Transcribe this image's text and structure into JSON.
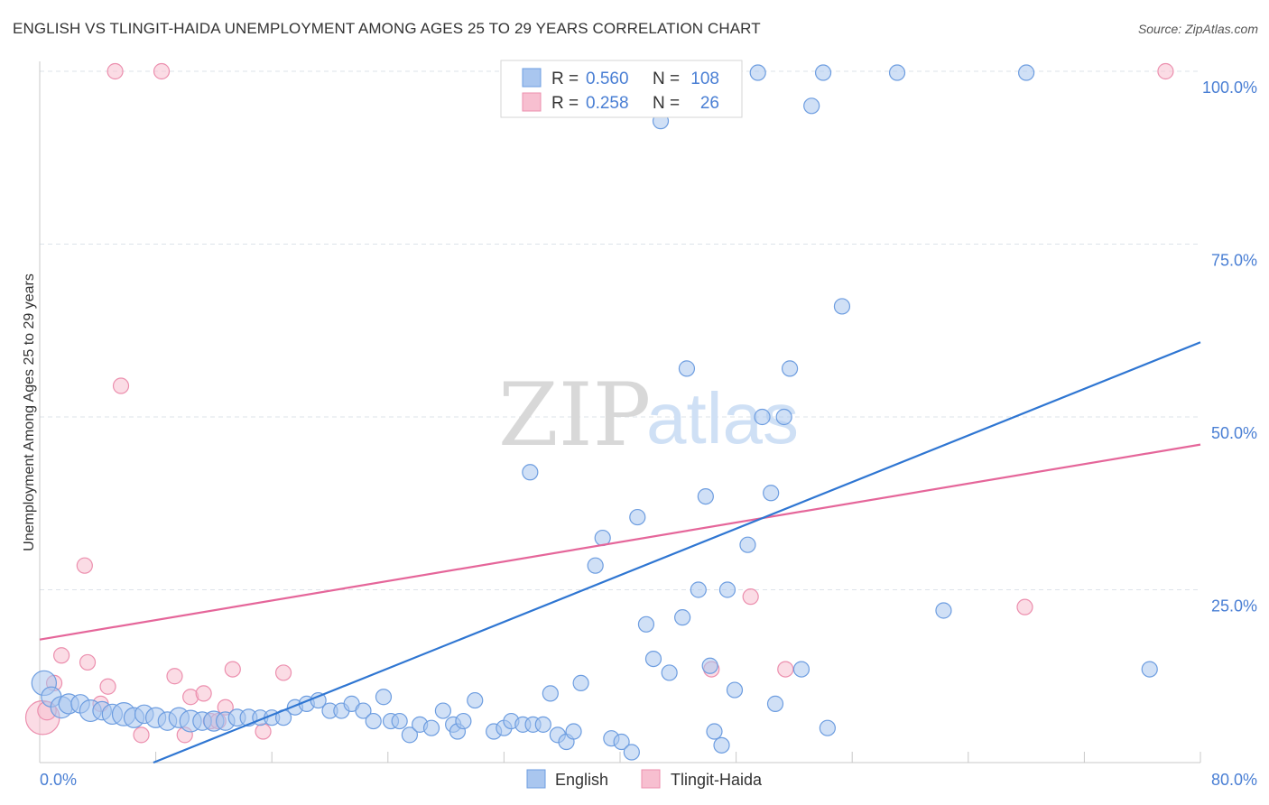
{
  "title": "ENGLISH VS TLINGIT-HAIDA UNEMPLOYMENT AMONG AGES 25 TO 29 YEARS CORRELATION CHART",
  "source": "Source: ZipAtlas.com",
  "watermark": {
    "zip": "ZIP",
    "atlas": "atlas"
  },
  "legend_box": {
    "rows": [
      {
        "r_label": "R =",
        "r_value": "0.560",
        "n_label": "N =",
        "n_value": "108"
      },
      {
        "r_label": "R =",
        "r_value": "0.258",
        "n_label": "N =",
        "n_value": "26"
      }
    ]
  },
  "bottom_legend": {
    "english": "English",
    "tlingit": "Tlingit-Haida"
  },
  "colors": {
    "english_fill": "#a9c6ef",
    "english_stroke": "#6d9de0",
    "english_line": "#2f76d2",
    "tlingit_fill": "#f7bfd0",
    "tlingit_stroke": "#ec8fae",
    "tlingit_line": "#e5669a",
    "tick_text": "#4a7fd4",
    "grid": "#dde3ea"
  },
  "chart_data": {
    "type": "scatter",
    "title": "ENGLISH VS TLINGIT-HAIDA UNEMPLOYMENT AMONG AGES 25 TO 29 YEARS CORRELATION CHART",
    "xlabel": "",
    "ylabel": "Unemployment Among Ages 25 to 29 years",
    "xlim": [
      0,
      80
    ],
    "ylim": [
      0,
      100
    ],
    "x_tick_labels": [
      "0.0%",
      "80.0%"
    ],
    "y_ticks": [
      25,
      50,
      75,
      100
    ],
    "y_tick_labels": [
      "25.0%",
      "50.0%",
      "75.0%",
      "100.0%"
    ],
    "grid": true,
    "legend_position": "bottom-center",
    "series": [
      {
        "name": "English",
        "R": 0.56,
        "N": 108,
        "trend": {
          "x": [
            0,
            80
          ],
          "y": [
            -6.6,
            60.8
          ]
        },
        "points": [
          [
            0.3,
            11.5,
            1.6
          ],
          [
            0.8,
            9.5,
            1.3
          ],
          [
            1.5,
            8.0,
            1.4
          ],
          [
            2.0,
            8.5,
            1.3
          ],
          [
            2.8,
            8.5,
            1.2
          ],
          [
            3.5,
            7.5,
            1.4
          ],
          [
            4.3,
            7.5,
            1.2
          ],
          [
            5.0,
            7.0,
            1.3
          ],
          [
            5.8,
            7.0,
            1.5
          ],
          [
            6.5,
            6.5,
            1.3
          ],
          [
            7.2,
            7.0,
            1.2
          ],
          [
            8.0,
            6.5,
            1.3
          ],
          [
            8.8,
            6.0,
            1.2
          ],
          [
            9.6,
            6.5,
            1.3
          ],
          [
            10.4,
            6.0,
            1.4
          ],
          [
            11.2,
            6.0,
            1.2
          ],
          [
            12.0,
            6.0,
            1.3
          ],
          [
            12.8,
            6.0,
            1.2
          ],
          [
            13.6,
            6.5,
            1.1
          ],
          [
            14.4,
            6.5,
            1.1
          ],
          [
            15.2,
            6.5,
            1.0
          ],
          [
            16.0,
            6.5,
            1.0
          ],
          [
            16.8,
            6.5,
            1.0
          ],
          [
            17.6,
            8.0,
            1.0
          ],
          [
            18.4,
            8.5,
            1.0
          ],
          [
            19.2,
            9.0,
            1.0
          ],
          [
            20.0,
            7.5,
            1.0
          ],
          [
            20.8,
            7.5,
            1.0
          ],
          [
            21.5,
            8.5,
            1.0
          ],
          [
            22.3,
            7.5,
            1.0
          ],
          [
            23.0,
            6.0,
            1.0
          ],
          [
            23.7,
            9.5,
            1.0
          ],
          [
            24.2,
            6.0,
            1.0
          ],
          [
            24.8,
            6.0,
            1.0
          ],
          [
            25.5,
            4.0,
            1.0
          ],
          [
            26.2,
            5.5,
            1.0
          ],
          [
            27.0,
            5.0,
            1.0
          ],
          [
            27.8,
            7.5,
            1.0
          ],
          [
            28.5,
            5.5,
            1.0
          ],
          [
            28.8,
            4.5,
            1.0
          ],
          [
            29.2,
            6.0,
            1.0
          ],
          [
            30.0,
            9.0,
            1.0
          ],
          [
            31.3,
            4.5,
            1.0
          ],
          [
            32.0,
            5.0,
            1.0
          ],
          [
            32.5,
            6.0,
            1.0
          ],
          [
            33.3,
            5.5,
            1.0
          ],
          [
            34.0,
            5.5,
            1.0
          ],
          [
            34.7,
            5.5,
            1.0
          ],
          [
            35.2,
            10.0,
            1.0
          ],
          [
            35.7,
            4.0,
            1.0
          ],
          [
            36.3,
            3.0,
            1.0
          ],
          [
            36.8,
            4.5,
            1.0
          ],
          [
            37.3,
            11.5,
            1.0
          ],
          [
            38.3,
            28.5,
            1.0
          ],
          [
            38.8,
            32.5,
            1.0
          ],
          [
            39.4,
            3.5,
            1.0
          ],
          [
            40.1,
            3.0,
            1.0
          ],
          [
            40.8,
            1.5,
            1.0
          ],
          [
            41.2,
            35.5,
            1.0
          ],
          [
            41.8,
            20.0,
            1.0
          ],
          [
            42.3,
            15.0,
            1.0
          ],
          [
            43.4,
            13.0,
            1.0
          ],
          [
            33.8,
            42.0,
            1.0
          ],
          [
            41.4,
            99.8,
            1.0
          ],
          [
            42.8,
            92.8,
            1.0
          ],
          [
            43.6,
            99.5,
            1.0
          ],
          [
            44.3,
            21.0,
            1.0
          ],
          [
            44.6,
            57.0,
            1.0
          ],
          [
            45.4,
            25.0,
            1.0
          ],
          [
            45.9,
            38.5,
            1.0
          ],
          [
            46.2,
            14.0,
            1.0
          ],
          [
            46.5,
            4.5,
            1.0
          ],
          [
            47.0,
            2.5,
            1.0
          ],
          [
            47.4,
            25.0,
            1.0
          ],
          [
            47.9,
            10.5,
            1.0
          ],
          [
            48.8,
            31.5,
            1.0
          ],
          [
            49.5,
            99.8,
            1.0
          ],
          [
            49.8,
            50.0,
            1.0
          ],
          [
            50.4,
            39.0,
            1.0
          ],
          [
            50.7,
            8.5,
            1.0
          ],
          [
            51.3,
            50.0,
            1.0
          ],
          [
            51.7,
            57.0,
            1.0
          ],
          [
            52.5,
            13.5,
            1.0
          ],
          [
            53.2,
            95.0,
            1.0
          ],
          [
            54.0,
            99.8,
            1.0
          ],
          [
            55.3,
            66.0,
            1.0
          ],
          [
            59.1,
            99.8,
            1.0
          ],
          [
            62.3,
            22.0,
            1.0
          ],
          [
            68.0,
            99.8,
            1.0
          ],
          [
            76.5,
            13.5,
            1.0
          ],
          [
            54.3,
            5.0,
            1.0
          ]
        ]
      },
      {
        "name": "Tlingit-Haida",
        "R": 0.258,
        "N": 26,
        "trend": {
          "x": [
            0,
            80
          ],
          "y": [
            17.8,
            46.0
          ]
        },
        "points": [
          [
            0.2,
            6.5,
            2.2
          ],
          [
            0.5,
            7.5,
            1.2
          ],
          [
            1.0,
            11.5,
            1.0
          ],
          [
            1.5,
            15.5,
            1.0
          ],
          [
            3.1,
            28.5,
            1.0
          ],
          [
            3.3,
            14.5,
            1.0
          ],
          [
            4.2,
            8.5,
            1.0
          ],
          [
            4.7,
            11.0,
            1.0
          ],
          [
            5.2,
            100.0,
            1.0
          ],
          [
            5.6,
            54.5,
            1.0
          ],
          [
            7.0,
            4.0,
            1.0
          ],
          [
            8.4,
            100.0,
            1.0
          ],
          [
            9.3,
            12.5,
            1.0
          ],
          [
            10.0,
            4.0,
            1.0
          ],
          [
            10.4,
            9.5,
            1.0
          ],
          [
            11.3,
            10.0,
            1.0
          ],
          [
            11.8,
            6.0,
            1.0
          ],
          [
            12.3,
            6.0,
            1.0
          ],
          [
            12.8,
            8.0,
            1.0
          ],
          [
            13.3,
            13.5,
            1.0
          ],
          [
            15.4,
            4.5,
            1.0
          ],
          [
            16.8,
            13.0,
            1.0
          ],
          [
            46.3,
            13.5,
            1.0
          ],
          [
            49.0,
            24.0,
            1.0
          ],
          [
            51.4,
            13.5,
            1.0
          ],
          [
            67.9,
            22.5,
            1.0
          ],
          [
            77.6,
            100.0,
            1.0
          ]
        ]
      }
    ]
  }
}
